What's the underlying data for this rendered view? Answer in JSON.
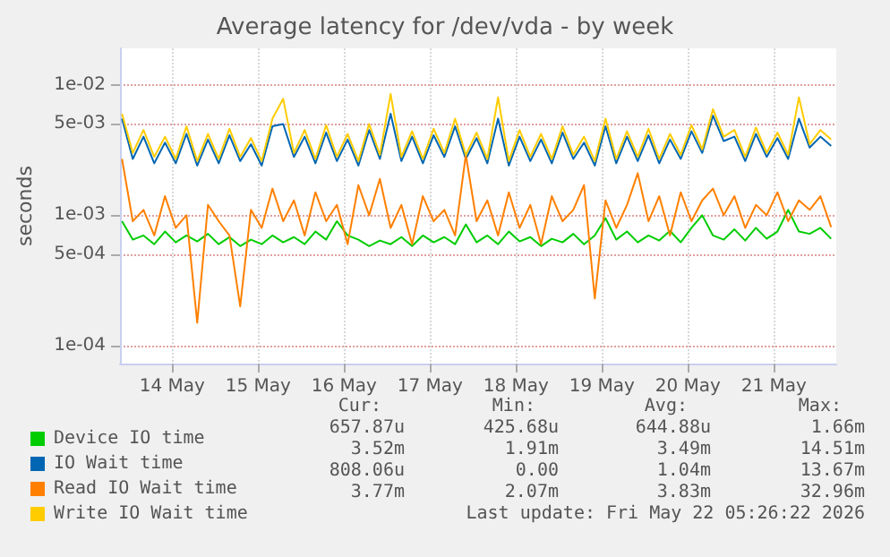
{
  "chart_data": {
    "type": "line",
    "title": "Average latency for /dev/vda - by week",
    "ylabel": "seconds",
    "log": "y",
    "grid": true,
    "legend": "bottom",
    "marker": "none",
    "line_style": "solid",
    "xlim": [
      "2026-05-13T21:26",
      "2026-05-22T05:26"
    ],
    "xticks": [
      {
        "value": "2026-05-14T12:00",
        "label": "14 May"
      },
      {
        "value": "2026-05-15T12:00",
        "label": "15 May"
      },
      {
        "value": "2026-05-16T12:00",
        "label": "16 May"
      },
      {
        "value": "2026-05-17T12:00",
        "label": "17 May"
      },
      {
        "value": "2026-05-18T12:00",
        "label": "18 May"
      },
      {
        "value": "2026-05-19T12:00",
        "label": "19 May"
      },
      {
        "value": "2026-05-20T12:00",
        "label": "20 May"
      },
      {
        "value": "2026-05-21T12:00",
        "label": "21 May"
      }
    ],
    "ylim": [
      7.3e-05,
      0.019
    ],
    "yticks": [
      {
        "value": 0.0001,
        "label": "1e-04"
      },
      {
        "value": 0.0005,
        "label": "5e-04"
      },
      {
        "value": 0.001,
        "label": "1e-03"
      },
      {
        "value": 0.005,
        "label": "5e-03"
      },
      {
        "value": 0.01,
        "label": "1e-02"
      }
    ],
    "x": [
      "2026-05-13T22:00",
      "2026-05-14T01:00",
      "2026-05-14T04:00",
      "2026-05-14T07:00",
      "2026-05-14T10:00",
      "2026-05-14T13:00",
      "2026-05-14T16:00",
      "2026-05-14T19:00",
      "2026-05-14T22:00",
      "2026-05-15T01:00",
      "2026-05-15T04:00",
      "2026-05-15T07:00",
      "2026-05-15T10:00",
      "2026-05-15T13:00",
      "2026-05-15T16:00",
      "2026-05-15T19:00",
      "2026-05-15T22:00",
      "2026-05-16T01:00",
      "2026-05-16T04:00",
      "2026-05-16T07:00",
      "2026-05-16T10:00",
      "2026-05-16T13:00",
      "2026-05-16T16:00",
      "2026-05-16T19:00",
      "2026-05-16T22:00",
      "2026-05-17T01:00",
      "2026-05-17T04:00",
      "2026-05-17T07:00",
      "2026-05-17T10:00",
      "2026-05-17T13:00",
      "2026-05-17T16:00",
      "2026-05-17T19:00",
      "2026-05-17T22:00",
      "2026-05-18T01:00",
      "2026-05-18T04:00",
      "2026-05-18T07:00",
      "2026-05-18T10:00",
      "2026-05-18T13:00",
      "2026-05-18T16:00",
      "2026-05-18T19:00",
      "2026-05-18T22:00",
      "2026-05-19T01:00",
      "2026-05-19T04:00",
      "2026-05-19T07:00",
      "2026-05-19T10:00",
      "2026-05-19T13:00",
      "2026-05-19T16:00",
      "2026-05-19T19:00",
      "2026-05-19T22:00",
      "2026-05-20T01:00",
      "2026-05-20T04:00",
      "2026-05-20T07:00",
      "2026-05-20T10:00",
      "2026-05-20T13:00",
      "2026-05-20T16:00",
      "2026-05-20T19:00",
      "2026-05-20T22:00",
      "2026-05-21T01:00",
      "2026-05-21T04:00",
      "2026-05-21T07:00",
      "2026-05-21T10:00",
      "2026-05-21T13:00",
      "2026-05-21T16:00",
      "2026-05-21T19:00",
      "2026-05-21T22:00",
      "2026-05-22T01:00",
      "2026-05-22T04:00"
    ],
    "series": [
      {
        "name": "Device IO time",
        "color": "#00cc00",
        "values": [
          0.0009,
          0.00065,
          0.0007,
          0.0006,
          0.00075,
          0.00062,
          0.0007,
          0.00063,
          0.00072,
          0.0006,
          0.00068,
          0.00058,
          0.00065,
          0.0006,
          0.0007,
          0.00062,
          0.00068,
          0.0006,
          0.00075,
          0.00065,
          0.0009,
          0.0007,
          0.00065,
          0.00058,
          0.00064,
          0.0006,
          0.00068,
          0.00058,
          0.0007,
          0.00062,
          0.00068,
          0.0006,
          0.00085,
          0.00062,
          0.0007,
          0.0006,
          0.00075,
          0.00063,
          0.00068,
          0.00058,
          0.00066,
          0.00062,
          0.00072,
          0.0006,
          0.0007,
          0.00095,
          0.00065,
          0.00075,
          0.00062,
          0.0007,
          0.00064,
          0.00076,
          0.00062,
          0.0008,
          0.001,
          0.0007,
          0.00065,
          0.00078,
          0.00064,
          0.0008,
          0.00066,
          0.00075,
          0.0011,
          0.00075,
          0.00072,
          0.0008,
          0.00066
        ]
      },
      {
        "name": "IO Wait time",
        "color": "#0066b3",
        "values": [
          0.0055,
          0.0027,
          0.004,
          0.0025,
          0.0036,
          0.0025,
          0.0042,
          0.0024,
          0.0038,
          0.0025,
          0.0041,
          0.0026,
          0.0035,
          0.0024,
          0.0048,
          0.005,
          0.0028,
          0.004,
          0.0025,
          0.0043,
          0.0026,
          0.0038,
          0.0024,
          0.0045,
          0.0027,
          0.006,
          0.0026,
          0.004,
          0.0025,
          0.0041,
          0.0028,
          0.0048,
          0.0027,
          0.0039,
          0.0025,
          0.0055,
          0.0024,
          0.004,
          0.0026,
          0.0038,
          0.0025,
          0.0043,
          0.0027,
          0.0036,
          0.0024,
          0.0048,
          0.0025,
          0.004,
          0.0026,
          0.0041,
          0.0025,
          0.0038,
          0.0027,
          0.0044,
          0.003,
          0.0058,
          0.0037,
          0.004,
          0.0026,
          0.0042,
          0.0028,
          0.0039,
          0.0027,
          0.0055,
          0.0033,
          0.004,
          0.0034
        ]
      },
      {
        "name": "Read IO Wait time",
        "color": "#ff8000",
        "values": [
          0.0027,
          0.0009,
          0.0011,
          0.0007,
          0.0014,
          0.0008,
          0.001,
          0.00015,
          0.0012,
          0.0009,
          0.0007,
          0.0002,
          0.0011,
          0.0008,
          0.0016,
          0.0009,
          0.0013,
          0.0007,
          0.0015,
          0.0009,
          0.0012,
          0.0006,
          0.0017,
          0.001,
          0.0019,
          0.0008,
          0.0012,
          0.0006,
          0.0014,
          0.0009,
          0.0011,
          0.0007,
          0.0029,
          0.0009,
          0.0013,
          0.0007,
          0.0015,
          0.0008,
          0.0012,
          0.0006,
          0.0014,
          0.0009,
          0.0011,
          0.0017,
          0.00023,
          0.0013,
          0.0008,
          0.0012,
          0.0021,
          0.0009,
          0.0014,
          0.0007,
          0.0015,
          0.0009,
          0.0013,
          0.0016,
          0.001,
          0.0014,
          0.0008,
          0.0012,
          0.001,
          0.0015,
          0.0009,
          0.0013,
          0.0011,
          0.0014,
          0.00081
        ]
      },
      {
        "name": "Write IO Wait time",
        "color": "#ffcc00",
        "values": [
          0.006,
          0.003,
          0.0045,
          0.0028,
          0.004,
          0.0027,
          0.0048,
          0.0026,
          0.0042,
          0.0027,
          0.0046,
          0.0028,
          0.0039,
          0.0026,
          0.0055,
          0.0078,
          0.003,
          0.0045,
          0.0027,
          0.0049,
          0.0028,
          0.0042,
          0.0026,
          0.005,
          0.0029,
          0.0085,
          0.0028,
          0.0044,
          0.0027,
          0.0046,
          0.003,
          0.0055,
          0.0029,
          0.0043,
          0.0027,
          0.008,
          0.0026,
          0.0045,
          0.0028,
          0.0042,
          0.0027,
          0.0048,
          0.0029,
          0.004,
          0.0026,
          0.0055,
          0.0027,
          0.0044,
          0.0028,
          0.0046,
          0.0027,
          0.0042,
          0.0029,
          0.0049,
          0.0032,
          0.0065,
          0.004,
          0.0045,
          0.0028,
          0.0047,
          0.003,
          0.0043,
          0.0029,
          0.008,
          0.0035,
          0.0045,
          0.0038
        ]
      }
    ],
    "annotations": [
      "Cur:",
      "Min:",
      "Avg:",
      "Max:",
      "657.87u",
      "425.68u",
      "644.88u",
      "1.66m",
      "3.52m",
      "1.91m",
      "3.49m",
      "14.51m",
      "808.06u",
      "0.00",
      "1.04m",
      "13.67m",
      "3.77m",
      "2.07m",
      "3.83m",
      "32.96m",
      "Last update: Fri May 22 05:26:22 2026"
    ]
  }
}
